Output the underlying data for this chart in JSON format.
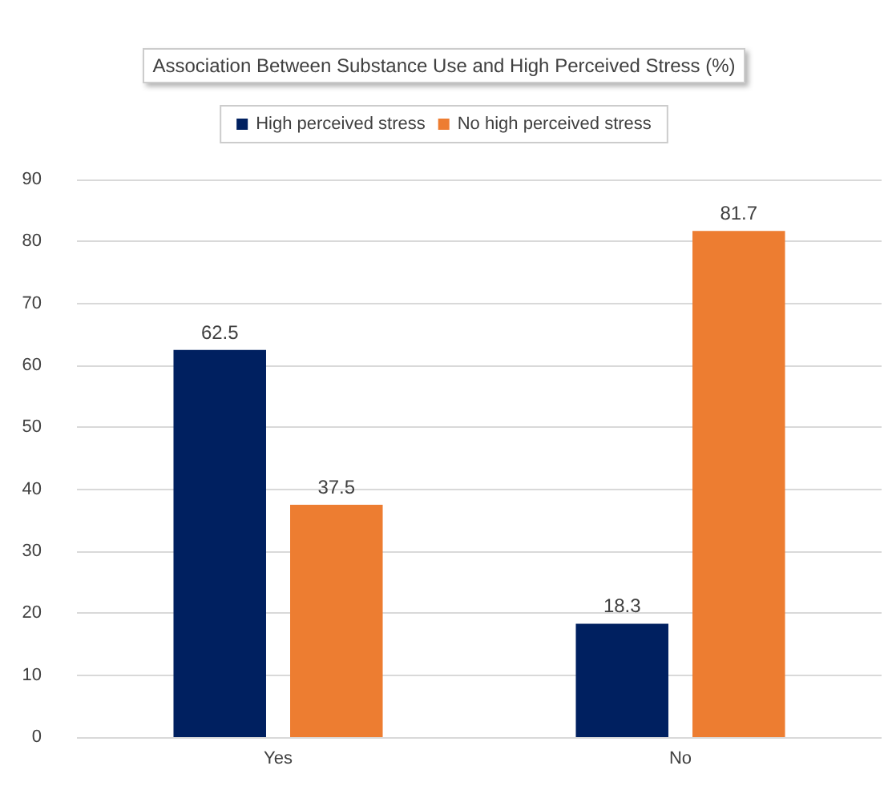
{
  "chart_data": {
    "type": "bar",
    "title": "Association Between Substance Use and High Perceived Stress (%)",
    "categories": [
      "Yes",
      "No"
    ],
    "series": [
      {
        "name": "High perceived stress",
        "color": "#002060",
        "values": [
          62.5,
          18.3
        ]
      },
      {
        "name": "No high perceived stress",
        "color": "#ed7d31",
        "values": [
          37.5,
          81.7
        ]
      }
    ],
    "ylim": [
      0,
      90
    ],
    "yticks": [
      0,
      10,
      20,
      30,
      40,
      50,
      60,
      70,
      80,
      90
    ],
    "grid": "y",
    "legend": "top",
    "data_labels": true
  }
}
